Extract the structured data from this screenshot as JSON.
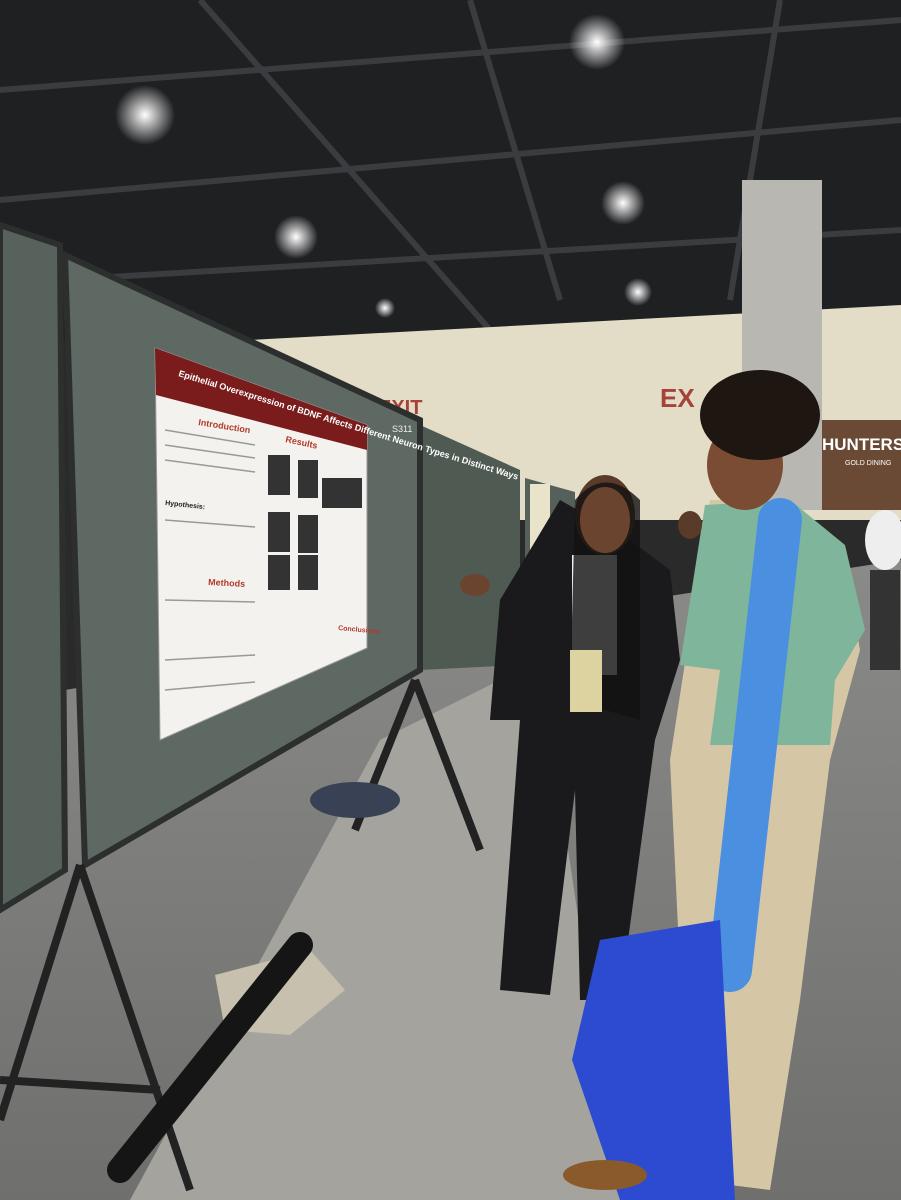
{
  "scene": {
    "signs": {
      "exit_left": "EXIT",
      "exit_right": "EX",
      "restaurant": "HUNTERS",
      "restaurant_sub": "GOLD DINING",
      "board_number": "S311"
    },
    "poster": {
      "title": "Epithelial Overexpression of BDNF Affects Different Neuron Types in Distinct Ways",
      "sections": [
        "Introduction",
        "Hypothesis:",
        "Methods",
        "Results",
        "Conclusions"
      ]
    }
  }
}
